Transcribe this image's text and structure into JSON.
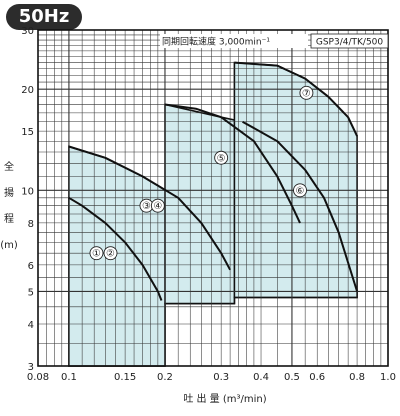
{
  "badge": "50Hz",
  "chart_data": {
    "type": "area",
    "title": "",
    "model_label": "GSP3/4/TK/500",
    "speed_note": "同期回転速度 3,000min⁻¹",
    "xlabel": "吐 出 量 (m³/min)",
    "ylabel_chars": [
      "全",
      "揚",
      "程",
      "(m)"
    ],
    "x_scale": "log",
    "y_scale": "log",
    "xlim": [
      0.08,
      1.0
    ],
    "ylim": [
      3,
      30
    ],
    "x_tick_labels": [
      {
        "value": 0.08,
        "label": "0.08"
      },
      {
        "value": 0.1,
        "label": "0.1"
      },
      {
        "value": 0.15,
        "label": "0.15"
      },
      {
        "value": 0.2,
        "label": "0.2"
      },
      {
        "value": 0.3,
        "label": "0.3"
      },
      {
        "value": 0.4,
        "label": "0.4"
      },
      {
        "value": 0.5,
        "label": "0.5"
      },
      {
        "value": 0.6,
        "label": "0.6"
      },
      {
        "value": 0.8,
        "label": "0.8"
      },
      {
        "value": 1.0,
        "label": "1.0"
      }
    ],
    "y_tick_labels": [
      {
        "value": 3,
        "label": "3"
      },
      {
        "value": 4,
        "label": "4"
      },
      {
        "value": 5,
        "label": "5"
      },
      {
        "value": 6,
        "label": "6"
      },
      {
        "value": 8,
        "label": "8"
      },
      {
        "value": 10,
        "label": "10"
      },
      {
        "value": 15,
        "label": "15"
      },
      {
        "value": 20,
        "label": "20"
      },
      {
        "value": 30,
        "label": "30"
      }
    ],
    "grid": true,
    "fill_color": "#d3ebee",
    "line_color": "#111111",
    "regions": [
      {
        "name": "region-1-2",
        "polygon": [
          [
            0.1,
            3
          ],
          [
            0.1,
            9.5
          ],
          [
            0.11,
            9.0
          ],
          [
            0.13,
            8.0
          ],
          [
            0.15,
            7.0
          ],
          [
            0.17,
            6.0
          ],
          [
            0.19,
            5.0
          ],
          [
            0.195,
            4.7
          ],
          [
            0.2,
            4.6
          ],
          [
            0.2,
            3
          ]
        ],
        "curves": [
          {
            "points": [
              [
                0.1,
                9.5
              ],
              [
                0.11,
                9.0
              ],
              [
                0.13,
                8.0
              ],
              [
                0.15,
                7.0
              ],
              [
                0.17,
                6.0
              ],
              [
                0.19,
                5.0
              ],
              [
                0.195,
                4.7
              ]
            ]
          }
        ]
      },
      {
        "name": "region-3-4",
        "polygon": [
          [
            0.1,
            3
          ],
          [
            0.1,
            13.5
          ],
          [
            0.13,
            12.5
          ],
          [
            0.17,
            11.0
          ],
          [
            0.22,
            9.5
          ],
          [
            0.26,
            8.0
          ],
          [
            0.3,
            6.5
          ],
          [
            0.32,
            5.8
          ],
          [
            0.33,
            4.8
          ],
          [
            0.33,
            4.6
          ],
          [
            0.2,
            4.6
          ],
          [
            0.2,
            3
          ]
        ],
        "curves": [
          {
            "points": [
              [
                0.1,
                13.5
              ],
              [
                0.13,
                12.5
              ],
              [
                0.17,
                11.0
              ],
              [
                0.22,
                9.5
              ],
              [
                0.26,
                8.0
              ],
              [
                0.3,
                6.5
              ],
              [
                0.32,
                5.8
              ]
            ]
          }
        ]
      },
      {
        "name": "region-5-6",
        "polygon": [
          [
            0.2,
            4.6
          ],
          [
            0.2,
            18.0
          ],
          [
            0.3,
            16.5
          ],
          [
            0.35,
            16.0
          ],
          [
            0.45,
            14.0
          ],
          [
            0.55,
            11.5
          ],
          [
            0.63,
            9.5
          ],
          [
            0.7,
            7.5
          ],
          [
            0.8,
            5.0
          ],
          [
            0.8,
            4.8
          ],
          [
            0.33,
            4.8
          ],
          [
            0.33,
            4.6
          ]
        ],
        "curves": [
          {
            "points": [
              [
                0.2,
                18.0
              ],
              [
                0.25,
                17.5
              ],
              [
                0.3,
                16.5
              ],
              [
                0.38,
                14.0
              ],
              [
                0.45,
                11.0
              ],
              [
                0.5,
                9.0
              ],
              [
                0.53,
                8.0
              ]
            ]
          },
          {
            "points": [
              [
                0.35,
                16.0
              ],
              [
                0.45,
                14.0
              ],
              [
                0.55,
                11.5
              ],
              [
                0.63,
                9.5
              ],
              [
                0.7,
                7.5
              ],
              [
                0.8,
                5.0
              ]
            ]
          }
        ]
      },
      {
        "name": "region-7",
        "polygon": [
          [
            0.33,
            4.8
          ],
          [
            0.33,
            24.0
          ],
          [
            0.45,
            23.5
          ],
          [
            0.55,
            21.5
          ],
          [
            0.65,
            19.0
          ],
          [
            0.75,
            16.5
          ],
          [
            0.8,
            14.5
          ],
          [
            0.8,
            4.8
          ]
        ],
        "curves": [
          {
            "points": [
              [
                0.33,
                24.0
              ],
              [
                0.45,
                23.5
              ],
              [
                0.55,
                21.5
              ],
              [
                0.65,
                19.0
              ],
              [
                0.75,
                16.5
              ],
              [
                0.8,
                14.5
              ]
            ]
          }
        ]
      }
    ],
    "annotations": [
      {
        "label": "①",
        "x": 0.122,
        "y": 6.5
      },
      {
        "label": "②",
        "x": 0.135,
        "y": 6.5
      },
      {
        "label": "③",
        "x": 0.175,
        "y": 9.0
      },
      {
        "label": "④",
        "x": 0.19,
        "y": 9.0
      },
      {
        "label": "⑤",
        "x": 0.3,
        "y": 12.5
      },
      {
        "label": "⑥",
        "x": 0.53,
        "y": 10.0
      },
      {
        "label": "⑦",
        "x": 0.555,
        "y": 19.5
      }
    ]
  }
}
